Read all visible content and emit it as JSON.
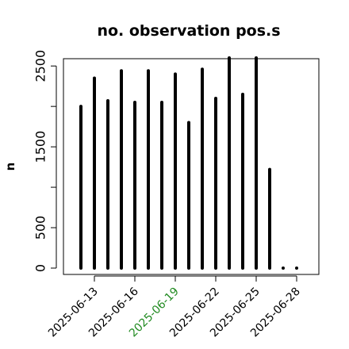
{
  "chart_data": {
    "type": "bar",
    "title": "no. observation pos.s",
    "xlabel": "",
    "ylabel": "n",
    "ylim": [
      0,
      2600
    ],
    "yticks": [
      0,
      500,
      1500,
      2500
    ],
    "x": [
      "2025-06-12",
      "2025-06-13",
      "2025-06-14",
      "2025-06-15",
      "2025-06-16",
      "2025-06-17",
      "2025-06-18",
      "2025-06-19",
      "2025-06-20",
      "2025-06-21",
      "2025-06-22",
      "2025-06-23",
      "2025-06-24",
      "2025-06-25",
      "2025-06-26",
      "2025-06-27",
      "2025-06-28"
    ],
    "values": [
      2000,
      2350,
      2070,
      2440,
      2050,
      2440,
      2050,
      2400,
      1800,
      2460,
      2100,
      2600,
      2150,
      2600,
      1220,
      0,
      0
    ],
    "xtick_labels": [
      "2025-06-13",
      "2025-06-16",
      "2025-06-19",
      "2025-06-22",
      "2025-06-25",
      "2025-06-28"
    ],
    "highlight_tick": "2025-06-19",
    "colors": {
      "bar": "#000000",
      "tick_text": "#000000",
      "highlight_text": "#228b22"
    }
  }
}
